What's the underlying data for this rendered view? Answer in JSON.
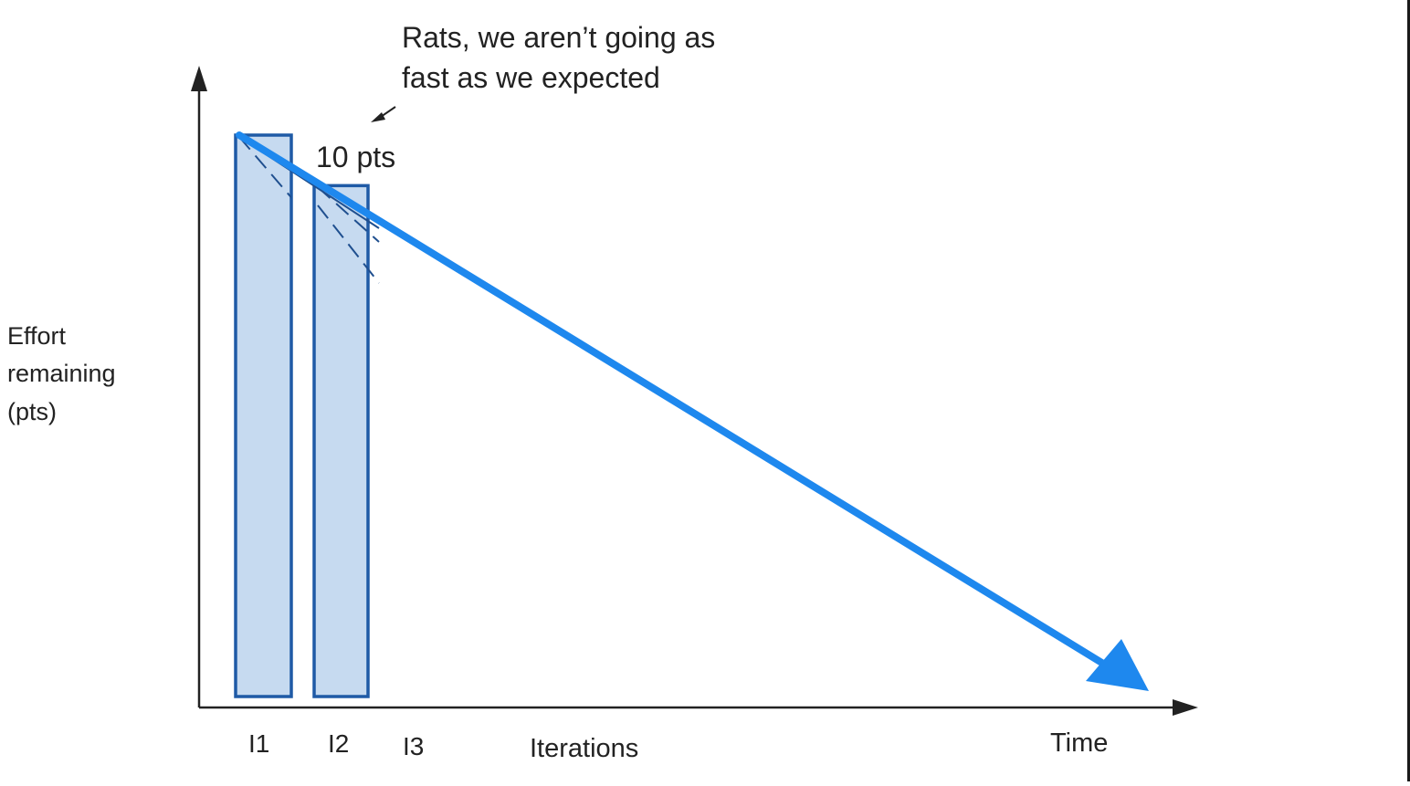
{
  "chart_data": {
    "type": "bar",
    "categories": [
      "I1",
      "I2",
      "I3"
    ],
    "values": [
      100,
      91,
      null
    ],
    "ylabel": [
      "Effort",
      "remaining",
      "(pts)"
    ],
    "xlabel": "Iterations",
    "time_label": "Time",
    "bar_label": "10 pts",
    "annotation": [
      "Rats, we aren’t going as",
      "fast as we expected"
    ],
    "overlay_arrow": {
      "start": [
        "I1",
        100
      ],
      "end": [
        "Time",
        0
      ]
    },
    "colors": {
      "bar_fill": "#c6daf0",
      "bar_stroke": "#1f5aa6",
      "arrow": "#1e88ee",
      "axis": "#222222"
    }
  }
}
